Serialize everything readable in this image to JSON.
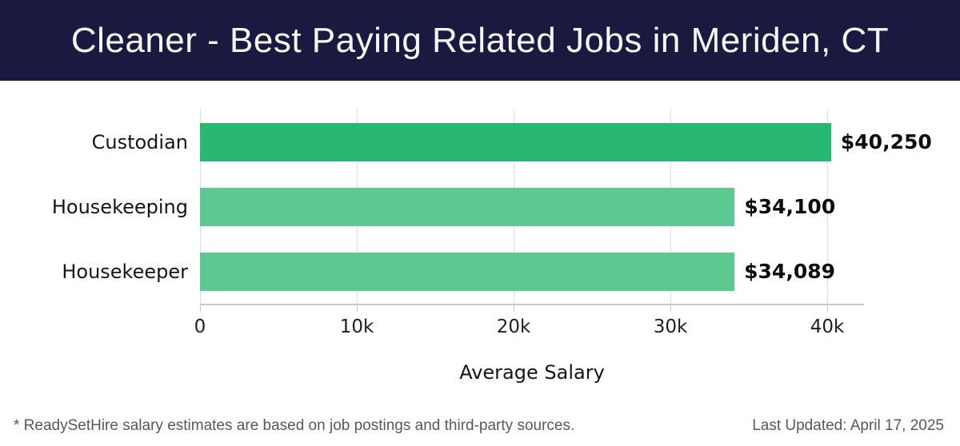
{
  "header": {
    "title": "Cleaner - Best Paying Related Jobs in Meriden, CT"
  },
  "chart_data": {
    "type": "bar",
    "orientation": "horizontal",
    "title": "Cleaner - Best Paying Related Jobs in Meriden, CT",
    "categories": [
      "Custodian",
      "Housekeeping",
      "Housekeeper"
    ],
    "values": [
      40250,
      34100,
      34089
    ],
    "value_labels": [
      "$40,250",
      "$34,100",
      "$34,089"
    ],
    "xlabel": "Average Salary",
    "ylabel": "",
    "xlim": [
      0,
      42300
    ],
    "x_ticks": [
      {
        "value": 0,
        "label": "0"
      },
      {
        "value": 10000,
        "label": "10k"
      },
      {
        "value": 20000,
        "label": "20k"
      },
      {
        "value": 30000,
        "label": "30k"
      },
      {
        "value": 40000,
        "label": "40k"
      }
    ],
    "grid": "vertical",
    "legend": "none",
    "bar_colors": [
      "#29b871",
      "#5ec892",
      "#5ec892"
    ]
  },
  "footer": {
    "disclaimer": "* ReadySetHire salary estimates are based on job postings and third-party sources.",
    "last_updated": "Last Updated: April 17, 2025"
  },
  "colors": {
    "header_bg": "#1a1a40",
    "title_text": "#f7f7fa",
    "bar_primary": "#29b871",
    "bar_secondary": "#5ec892",
    "grid_line": "#dcdcdc",
    "axis_line": "#c9c9c9",
    "chart_text": "#151515",
    "footer_text": "#58585b"
  }
}
